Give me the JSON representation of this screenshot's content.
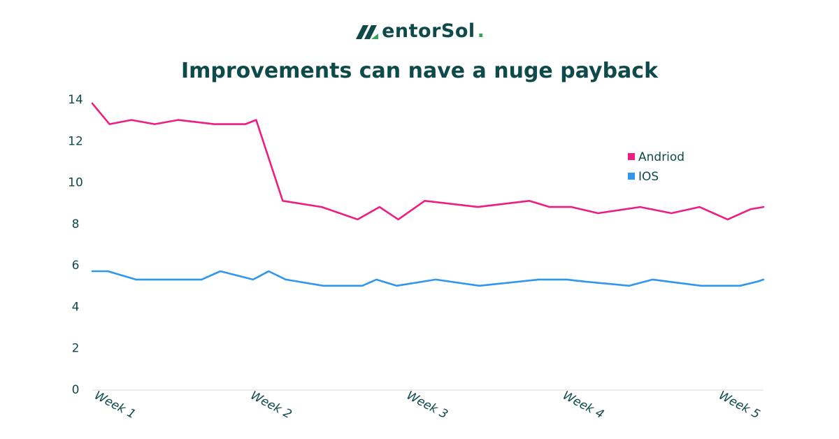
{
  "logo": {
    "text": "entorSol",
    "dot": "."
  },
  "chart_data": {
    "type": "line",
    "title": "Improvements can nave a nuge payback",
    "xlabel": "",
    "ylabel": "",
    "ylim": [
      0,
      14
    ],
    "yticks": [
      0,
      2,
      4,
      6,
      8,
      10,
      12,
      14
    ],
    "xlim": [
      0,
      4.3
    ],
    "x_tick_labels": [
      "Week 1",
      "Week 2",
      "Week 3",
      "Week 4",
      "Week 5"
    ],
    "x_tick_positions": [
      0,
      1,
      2,
      3,
      4
    ],
    "grid": false,
    "legend": "right",
    "series": [
      {
        "name": "Andriod",
        "color": "#ee1d82",
        "x": [
          0.0,
          0.11,
          0.25,
          0.4,
          0.55,
          0.78,
          0.98,
          1.05,
          1.22,
          1.47,
          1.7,
          1.84,
          1.96,
          2.13,
          2.47,
          2.8,
          2.93,
          3.07,
          3.24,
          3.51,
          3.71,
          3.89,
          4.07,
          4.22,
          4.3
        ],
        "values": [
          13.8,
          12.8,
          13.0,
          12.8,
          13.0,
          12.8,
          12.8,
          13.0,
          9.1,
          8.8,
          8.2,
          8.8,
          8.2,
          9.1,
          8.8,
          9.1,
          8.8,
          8.8,
          8.5,
          8.8,
          8.5,
          8.8,
          8.2,
          8.7,
          8.8
        ]
      },
      {
        "name": "IOS",
        "color": "#2f97ee",
        "x": [
          0.0,
          0.1,
          0.28,
          0.45,
          0.7,
          0.82,
          1.03,
          1.13,
          1.24,
          1.48,
          1.73,
          1.82,
          1.95,
          2.2,
          2.48,
          2.86,
          3.04,
          3.16,
          3.44,
          3.59,
          3.9,
          4.15,
          4.26,
          4.3
        ],
        "values": [
          5.7,
          5.7,
          5.3,
          5.3,
          5.3,
          5.7,
          5.3,
          5.7,
          5.3,
          5.0,
          5.0,
          5.3,
          5.0,
          5.3,
          5.0,
          5.3,
          5.3,
          5.2,
          5.0,
          5.3,
          5.0,
          5.0,
          5.2,
          5.3
        ]
      }
    ]
  }
}
